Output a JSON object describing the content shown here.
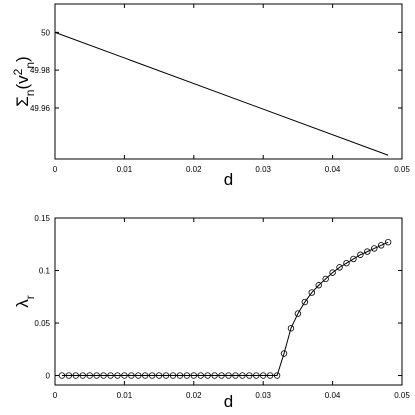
{
  "chart_data": [
    {
      "type": "line",
      "xlabel": "d",
      "ylabel_parts": [
        "Σ",
        "n",
        "(v",
        "2",
        "n",
        ")"
      ],
      "x": [
        0,
        0.048
      ],
      "series": [
        {
          "color": "#000000",
          "values": [
            50,
            49.935
          ]
        }
      ],
      "xlim": [
        0,
        0.05
      ],
      "xticks": [
        0,
        0.01,
        0.02,
        0.03,
        0.04,
        0.05
      ],
      "ylim": [
        49.933,
        50.015
      ],
      "yticks": [
        49.96,
        49.98,
        50
      ]
    },
    {
      "type": "line",
      "xlabel": "d",
      "ylabel_parts": [
        "λ",
        "r"
      ],
      "marker": "circle",
      "x": [
        0.001,
        0.002,
        0.003,
        0.004,
        0.005,
        0.006,
        0.007,
        0.008,
        0.009,
        0.01,
        0.011,
        0.012,
        0.013,
        0.014,
        0.015,
        0.016,
        0.017,
        0.018,
        0.019,
        0.02,
        0.021,
        0.022,
        0.023,
        0.024,
        0.025,
        0.026,
        0.027,
        0.028,
        0.029,
        0.03,
        0.031,
        0.032,
        0.033,
        0.034,
        0.035,
        0.036,
        0.037,
        0.038,
        0.039,
        0.04,
        0.041,
        0.042,
        0.043,
        0.044,
        0.045,
        0.046,
        0.047,
        0.048
      ],
      "series": [
        {
          "color": "#000000",
          "values": [
            0,
            0,
            0,
            0,
            0,
            0,
            0,
            0,
            0,
            0,
            0,
            0,
            0,
            0,
            0,
            0,
            0,
            0,
            0,
            0,
            0,
            0,
            0,
            0,
            0,
            0,
            0,
            0,
            0,
            0,
            0,
            0,
            0.021,
            0.045,
            0.059,
            0.07,
            0.079,
            0.086,
            0.092,
            0.098,
            0.103,
            0.107,
            0.111,
            0.115,
            0.118,
            0.121,
            0.124,
            0.127
          ]
        }
      ],
      "xlim": [
        0,
        0.05
      ],
      "xticks": [
        0,
        0.01,
        0.02,
        0.03,
        0.04,
        0.05
      ],
      "ylim": [
        -0.009,
        0.15
      ],
      "yticks": [
        0,
        0.05,
        0.1,
        0.15
      ]
    }
  ]
}
